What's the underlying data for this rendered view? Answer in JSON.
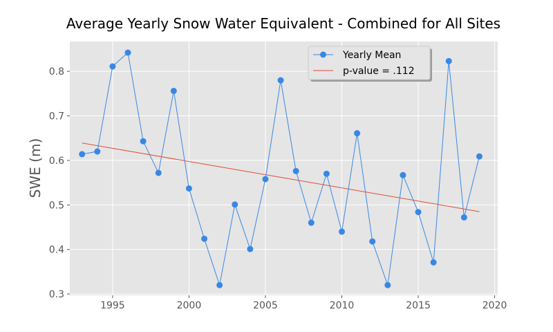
{
  "chart_data": {
    "type": "line",
    "title": "Average Yearly Snow Water Equivalent - Combined for All Sites",
    "xlabel": "",
    "ylabel": "SWE (m)",
    "xlim": [
      1992.2,
      2020.2
    ],
    "ylim": [
      0.297,
      0.867
    ],
    "x_ticks": [
      1995,
      2000,
      2005,
      2010,
      2015,
      2020
    ],
    "y_ticks": [
      0.3,
      0.4,
      0.5,
      0.6,
      0.7,
      0.8
    ],
    "y_tick_labels": [
      "0.3",
      "0.4",
      "0.5",
      "0.6",
      "0.7",
      "0.8"
    ],
    "grid": true,
    "legend_position": "top-right",
    "series": [
      {
        "name": "Yearly Mean",
        "kind": "line-marker",
        "color": "#3987e5",
        "x": [
          1993,
          1994,
          1995,
          1996,
          1997,
          1998,
          1999,
          2000,
          2001,
          2002,
          2003,
          2004,
          2005,
          2006,
          2007,
          2008,
          2009,
          2010,
          2011,
          2012,
          2013,
          2014,
          2015,
          2016,
          2017,
          2018,
          2019
        ],
        "y": [
          0.614,
          0.62,
          0.811,
          0.842,
          0.643,
          0.572,
          0.756,
          0.537,
          0.424,
          0.32,
          0.501,
          0.401,
          0.558,
          0.78,
          0.576,
          0.46,
          0.57,
          0.44,
          0.661,
          0.418,
          0.32,
          0.567,
          0.484,
          0.371,
          0.823,
          0.472,
          0.609
        ]
      },
      {
        "name": "p-value = .112",
        "kind": "trend-line",
        "color": "#e24a33",
        "x": [
          1993,
          2019
        ],
        "y": [
          0.639,
          0.485
        ]
      }
    ],
    "colors": {
      "plot_background": "#e5e5e5",
      "grid": "#ffffff"
    }
  }
}
